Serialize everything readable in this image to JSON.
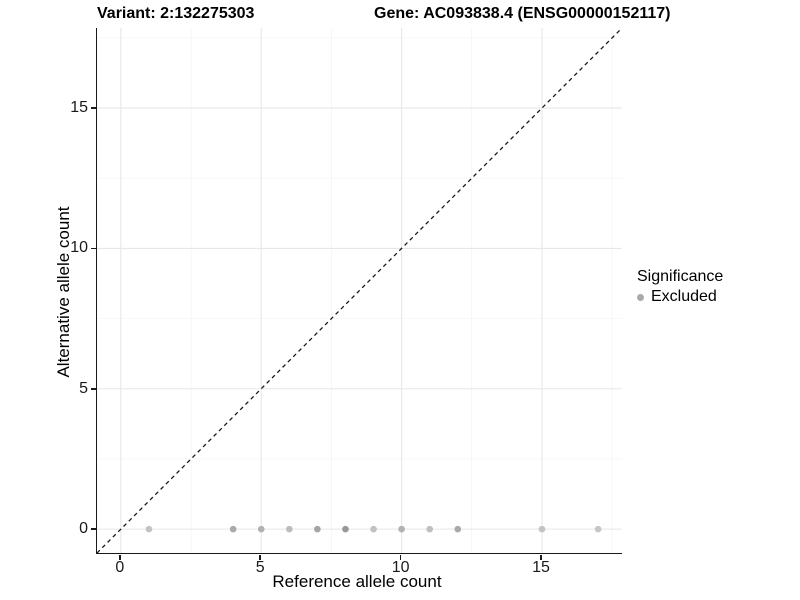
{
  "header": {
    "variant_title": "Variant: 2:132275303",
    "gene_title": "Gene: AC093838.4 (ENSG00000152117)"
  },
  "chart_data": {
    "type": "scatter",
    "xlabel": "Reference allele count",
    "ylabel": "Alternative allele count",
    "xlim": [
      -0.85,
      17.85
    ],
    "ylim": [
      -0.85,
      17.85
    ],
    "x_major_ticks": [
      0,
      5,
      10,
      15
    ],
    "y_major_ticks": [
      0,
      5,
      10,
      15
    ],
    "x_minor_ticks": [
      2.5,
      7.5,
      12.5,
      17.5
    ],
    "y_minor_ticks": [
      2.5,
      7.5,
      12.5,
      17.5
    ],
    "grid": {
      "major_color": "#e7e7e7",
      "minor_color": "#f3f3f3",
      "major_width": 1.1,
      "minor_width": 0.7
    },
    "identity_line": {
      "style": "dashed",
      "color": "#1a1a1a",
      "width": 1.3,
      "dash": "4 3.5",
      "from": [
        -0.85,
        -0.85
      ],
      "to": [
        17.85,
        17.85
      ]
    },
    "point_radius": 3.3,
    "points": [
      {
        "x": 1,
        "y": 0,
        "color": "#c3c3c3"
      },
      {
        "x": 4,
        "y": 0,
        "color": "#a9a9a9"
      },
      {
        "x": 5,
        "y": 0,
        "color": "#b1b1b1"
      },
      {
        "x": 6,
        "y": 0,
        "color": "#bdbdbd"
      },
      {
        "x": 7,
        "y": 0,
        "color": "#a4a4a4"
      },
      {
        "x": 8,
        "y": 0,
        "color": "#989898"
      },
      {
        "x": 9,
        "y": 0,
        "color": "#c1c1c1"
      },
      {
        "x": 10,
        "y": 0,
        "color": "#b1b1b1"
      },
      {
        "x": 11,
        "y": 0,
        "color": "#bfbfbf"
      },
      {
        "x": 12,
        "y": 0,
        "color": "#a9a9a9"
      },
      {
        "x": 15,
        "y": 0,
        "color": "#c3c3c3"
      },
      {
        "x": 17,
        "y": 0,
        "color": "#c6c6c6"
      }
    ],
    "legend": {
      "title": "Significance",
      "position": "right",
      "items": [
        {
          "label": "Excluded",
          "color": "#aaaaaa"
        }
      ]
    }
  }
}
